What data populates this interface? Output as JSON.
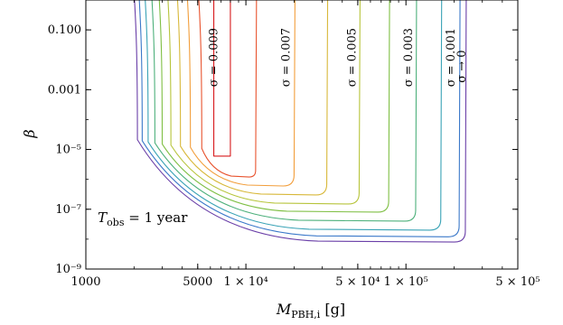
{
  "chart_data": {
    "type": "line",
    "title": "",
    "xlabel": "M",
    "xlabel_sub": "PBH,i",
    "xlabel_unit": "[g]",
    "ylabel": "β",
    "x_scale": "log",
    "y_scale": "log",
    "xlim": [
      1000,
      500000
    ],
    "ylim": [
      1e-09,
      1
    ],
    "grid": false,
    "legend": "none",
    "x_ticks": [
      {
        "value": 1000,
        "label": "1000"
      },
      {
        "value": 5000,
        "label": "5000"
      },
      {
        "value": 10000,
        "label": "1 × 10⁴"
      },
      {
        "value": 50000,
        "label": "5 × 10⁴"
      },
      {
        "value": 100000,
        "label": "1 × 10⁵"
      },
      {
        "value": 500000,
        "label": "5 × 10⁵"
      }
    ],
    "y_ticks": [
      {
        "value": 0.1,
        "label": "0.100"
      },
      {
        "value": 0.001,
        "label": "0.001"
      },
      {
        "value": 1e-05,
        "label": "10⁻⁵"
      },
      {
        "value": 1e-07,
        "label": "10⁻⁷"
      },
      {
        "value": 1e-09,
        "label": "10⁻⁹"
      }
    ],
    "annotation": {
      "text": "T",
      "sub": "obs",
      "rest": " = 1 year",
      "x": 1250,
      "y": 8e-09
    },
    "series": [
      {
        "sigma_label": "σ = 0.009",
        "color": "#d7191c",
        "left_x": 6300,
        "right_x": 8000,
        "bottom_beta": 6e-06,
        "label_x": 7000,
        "label_y": 0.012
      },
      {
        "sigma_label": "",
        "color": "#e8532e",
        "left_x": 5300,
        "right_x": 11500,
        "bottom_beta": 1.2e-06
      },
      {
        "sigma_label": "σ = 0.007",
        "color": "#f29e3b",
        "left_x": 4500,
        "right_x": 20000,
        "bottom_beta": 6e-07,
        "label_x": 19800,
        "label_y": 0.012
      },
      {
        "sigma_label": "",
        "color": "#d8b83a",
        "left_x": 3900,
        "right_x": 32000,
        "bottom_beta": 3e-07
      },
      {
        "sigma_label": "σ = 0.005",
        "color": "#b7c43b",
        "left_x": 3400,
        "right_x": 51000,
        "bottom_beta": 1.5e-07,
        "label_x": 51000,
        "label_y": 0.012
      },
      {
        "sigma_label": "",
        "color": "#7fbf44",
        "left_x": 3000,
        "right_x": 78000,
        "bottom_beta": 8e-08
      },
      {
        "sigma_label": "σ = 0.003",
        "color": "#4db07b",
        "left_x": 2700,
        "right_x": 115000,
        "bottom_beta": 4e-08,
        "label_x": 115000,
        "label_y": 0.012
      },
      {
        "sigma_label": "",
        "color": "#3aa3b6",
        "left_x": 2450,
        "right_x": 165000,
        "bottom_beta": 2e-08
      },
      {
        "sigma_label": "σ = 0.001",
        "color": "#3a78c9",
        "left_x": 2250,
        "right_x": 215000,
        "bottom_beta": 1.2e-08,
        "label_x": 212000,
        "label_y": 0.012
      },
      {
        "sigma_label": "σ → 0",
        "color": "#6a3fa8",
        "left_x": 2100,
        "right_x": 235000,
        "bottom_beta": 8e-09,
        "label_x": 248000,
        "label_y": 0.006
      }
    ]
  }
}
